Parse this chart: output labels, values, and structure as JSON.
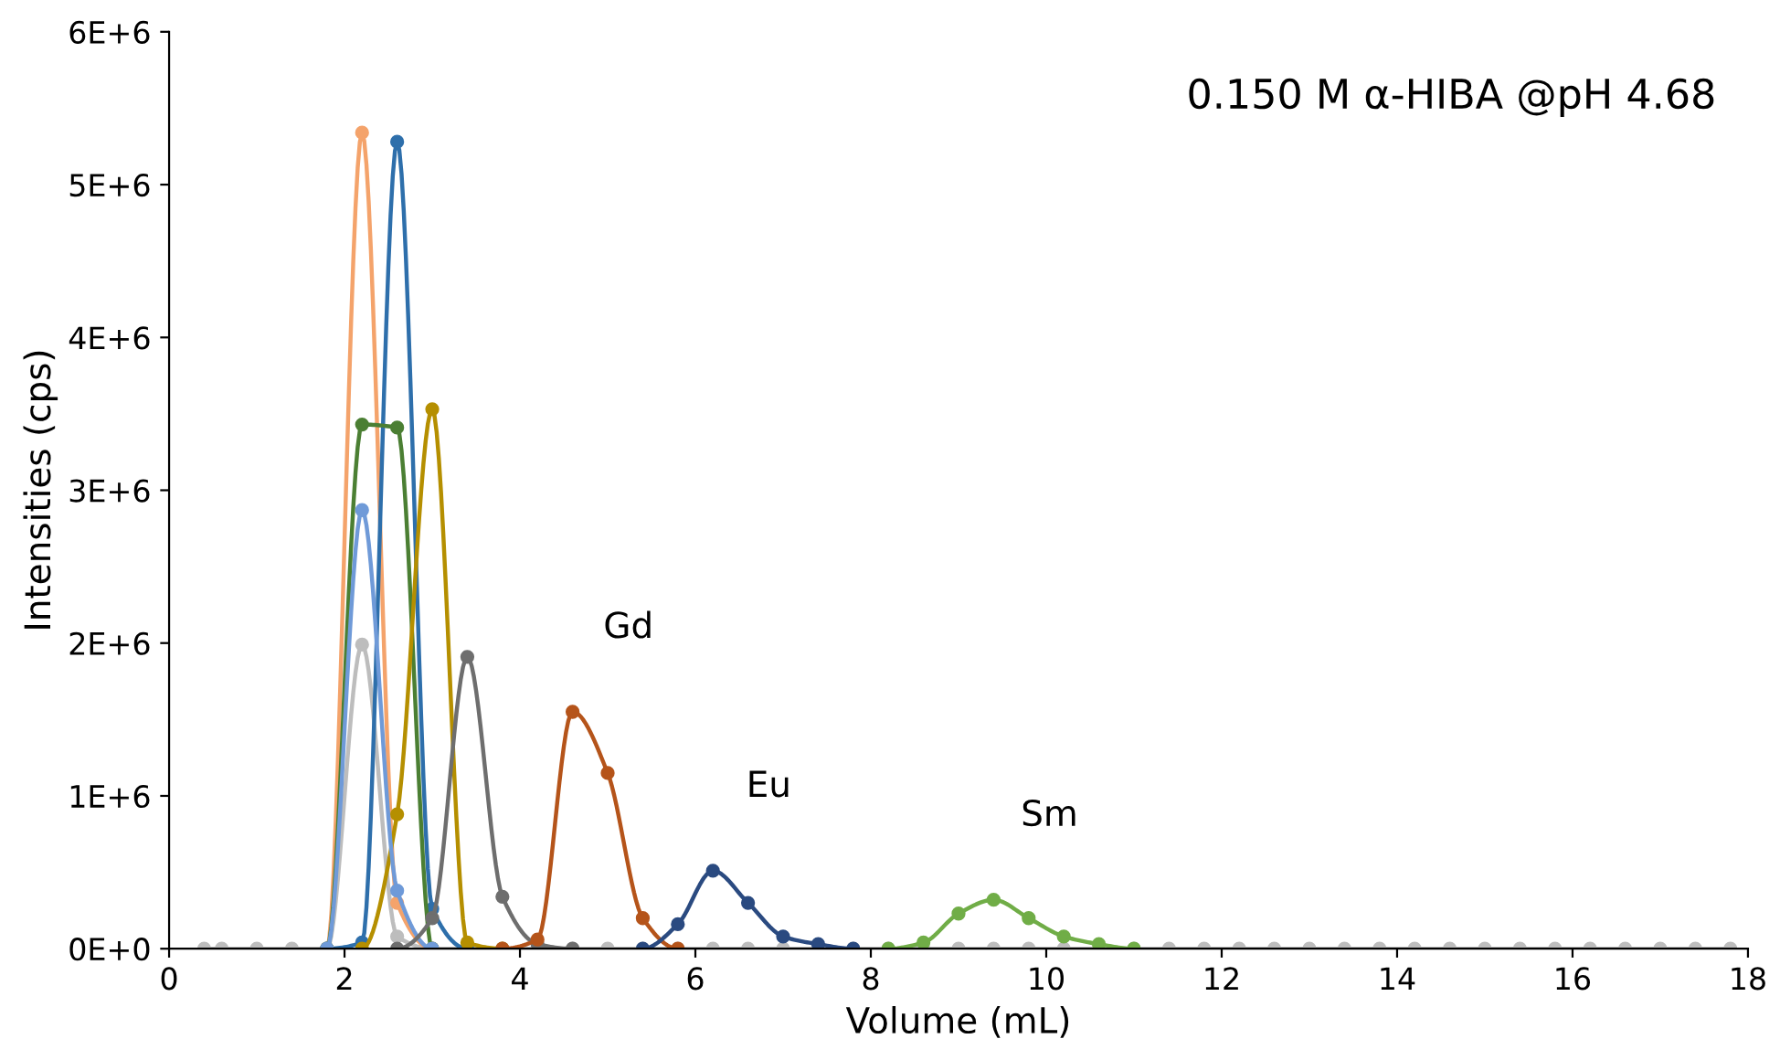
{
  "chart_data": {
    "type": "line",
    "xlabel": "Volume (mL)",
    "ylabel": "Intensities (cps)",
    "annotations": [
      "0.150 M α-HIBA @pH 4.68",
      {
        "text": "Gd",
        "x": 4.6,
        "y": 1550000
      },
      {
        "text": "Eu",
        "x": 6.2,
        "y": 510000
      },
      {
        "text": "Sm",
        "x": 9.4,
        "y": 320000
      }
    ],
    "series": [
      {
        "color": "#bdbdbd",
        "x": [
          0.4,
          0.6,
          1.0,
          1.4,
          1.8,
          2.2,
          2.6,
          3.0,
          3.4,
          3.8,
          4.2,
          4.6,
          5.0,
          5.4,
          5.8,
          6.2,
          6.6,
          7.0,
          7.4,
          7.8,
          8.2,
          8.6,
          9.0,
          9.4,
          9.8,
          10.2,
          10.6,
          11.0,
          11.4,
          11.8,
          12.2,
          12.6,
          13.0,
          13.4,
          13.8,
          14.2,
          14.6,
          15.0,
          15.4,
          15.8,
          16.2,
          16.6,
          17.0,
          17.4,
          17.8
        ],
        "values": [
          0,
          0,
          0,
          0,
          0,
          1990000,
          80000,
          0,
          0,
          0,
          0,
          0,
          0,
          0,
          0,
          0,
          0,
          0,
          0,
          0,
          0,
          0,
          0,
          0,
          0,
          0,
          0,
          0,
          0,
          0,
          0,
          0,
          0,
          0,
          0,
          0,
          0,
          0,
          0,
          0,
          0,
          0,
          0,
          0,
          0
        ]
      },
      {
        "color": "#f4a36b",
        "x": [
          1.8,
          2.2,
          2.6,
          3.0
        ],
        "values": [
          0,
          5340000,
          300000,
          0
        ]
      },
      {
        "color": "#2e6fab",
        "x": [
          1.8,
          2.2,
          2.6,
          3.0,
          3.4
        ],
        "values": [
          0,
          40000,
          5280000,
          260000,
          0
        ]
      },
      {
        "color": "#4b7f33",
        "x": [
          1.8,
          2.2,
          2.6,
          3.0
        ],
        "values": [
          0,
          3430000,
          3410000,
          0
        ]
      },
      {
        "color": "#b58f00",
        "x": [
          2.2,
          2.6,
          3.0,
          3.4,
          3.8
        ],
        "values": [
          0,
          880000,
          3530000,
          40000,
          0
        ]
      },
      {
        "color": "#6f9ad8",
        "x": [
          1.8,
          2.2,
          2.6,
          3.0
        ],
        "values": [
          0,
          2870000,
          380000,
          0
        ]
      },
      {
        "color": "#6e6e6e",
        "x": [
          2.6,
          3.0,
          3.4,
          3.8,
          4.2,
          4.6
        ],
        "values": [
          0,
          200000,
          1910000,
          340000,
          30000,
          0
        ]
      },
      {
        "color": "#b5541a",
        "x": [
          3.8,
          4.2,
          4.6,
          5.0,
          5.4,
          5.8
        ],
        "values": [
          0,
          60000,
          1550000,
          1150000,
          200000,
          0
        ]
      },
      {
        "color": "#2a4a80",
        "x": [
          5.4,
          5.8,
          6.2,
          6.6,
          7.0,
          7.4,
          7.8
        ],
        "values": [
          0,
          160000,
          510000,
          300000,
          80000,
          30000,
          0
        ]
      },
      {
        "color": "#70ad47",
        "x": [
          8.2,
          8.6,
          9.0,
          9.4,
          9.8,
          10.2,
          10.6,
          11.0
        ],
        "values": [
          0,
          40000,
          230000,
          320000,
          200000,
          80000,
          30000,
          0
        ]
      }
    ],
    "xlim": [
      0,
      18
    ],
    "xticks": [
      0,
      2,
      4,
      6,
      8,
      10,
      12,
      14,
      16,
      18
    ],
    "ylim": [
      0,
      6000000
    ],
    "yticks": [
      {
        "value": 0,
        "label": "0E+0"
      },
      {
        "value": 1000000,
        "label": "1E+6"
      },
      {
        "value": 2000000,
        "label": "2E+6"
      },
      {
        "value": 3000000,
        "label": "3E+6"
      },
      {
        "value": 4000000,
        "label": "4E+6"
      },
      {
        "value": 5000000,
        "label": "5E+6"
      },
      {
        "value": 6000000,
        "label": "6E+6"
      }
    ],
    "marker": "circle",
    "line_style": "solid",
    "grid": false,
    "legend": false
  }
}
